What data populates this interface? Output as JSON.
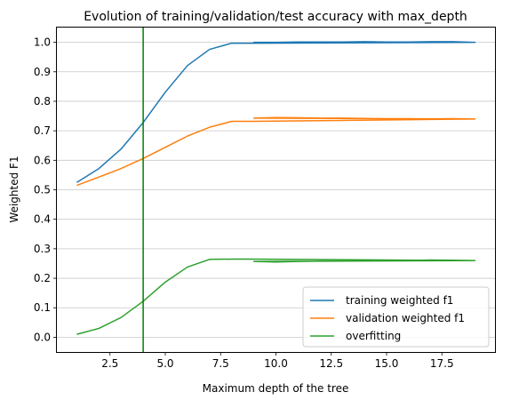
{
  "chart_data": {
    "type": "line",
    "title": "Evolution of training/validation/test accuracy with max_depth",
    "xlabel": "Maximum depth of the tree",
    "ylabel": "Weighted F1",
    "xlim": [
      0.1,
      19.9
    ],
    "ylim": [
      -0.05,
      1.05
    ],
    "x_ticks": [
      2.5,
      5.0,
      7.5,
      10.0,
      12.5,
      15.0,
      17.5
    ],
    "x_tick_labels": [
      "2.5",
      "5.0",
      "7.5",
      "10.0",
      "12.5",
      "15.0",
      "17.5"
    ],
    "y_ticks": [
      0.0,
      0.1,
      0.2,
      0.3,
      0.4,
      0.5,
      0.6,
      0.7,
      0.8,
      0.9,
      1.0
    ],
    "y_tick_labels": [
      "0.0",
      "0.1",
      "0.2",
      "0.3",
      "0.4",
      "0.5",
      "0.6",
      "0.7",
      "0.8",
      "0.9",
      "1.0"
    ],
    "grid": "horizontal",
    "legend_position": "bottom-right",
    "vline": {
      "x": 4,
      "color": "#008000"
    },
    "series": [
      {
        "name": "training weighted f1",
        "color": "#1f77b4",
        "x": [
          1,
          2,
          3,
          4,
          5,
          6,
          7,
          8,
          9,
          19,
          9,
          10,
          11,
          12,
          13,
          14,
          15,
          16,
          17,
          18,
          19
        ],
        "y": [
          0.525,
          0.572,
          0.638,
          0.728,
          0.831,
          0.921,
          0.976,
          0.997,
          0.997,
          1.0,
          1.0,
          1.0,
          1.001,
          1.001,
          1.001,
          1.002,
          1.001,
          1.001,
          1.002,
          1.002,
          1.0
        ]
      },
      {
        "name": "validation weighted f1",
        "color": "#ff7f0e",
        "x": [
          1,
          2,
          3,
          4,
          5,
          6,
          7,
          8,
          9,
          19,
          9,
          10,
          11,
          12,
          13,
          14,
          15,
          16,
          17,
          18,
          19
        ],
        "y": [
          0.515,
          0.543,
          0.572,
          0.606,
          0.644,
          0.682,
          0.712,
          0.732,
          0.732,
          0.74,
          0.743,
          0.745,
          0.744,
          0.743,
          0.743,
          0.742,
          0.741,
          0.741,
          0.74,
          0.741,
          0.74
        ]
      },
      {
        "name": "overfitting",
        "color": "#2ca02c",
        "x": [
          1,
          2,
          3,
          4,
          5,
          6,
          7,
          8,
          9,
          19,
          9,
          10,
          11,
          12,
          13,
          14,
          15,
          16,
          17,
          18,
          19
        ],
        "y": [
          0.01,
          0.03,
          0.067,
          0.122,
          0.187,
          0.238,
          0.264,
          0.265,
          0.265,
          0.26,
          0.257,
          0.255,
          0.257,
          0.258,
          0.258,
          0.26,
          0.26,
          0.26,
          0.262,
          0.261,
          0.26
        ]
      }
    ]
  }
}
